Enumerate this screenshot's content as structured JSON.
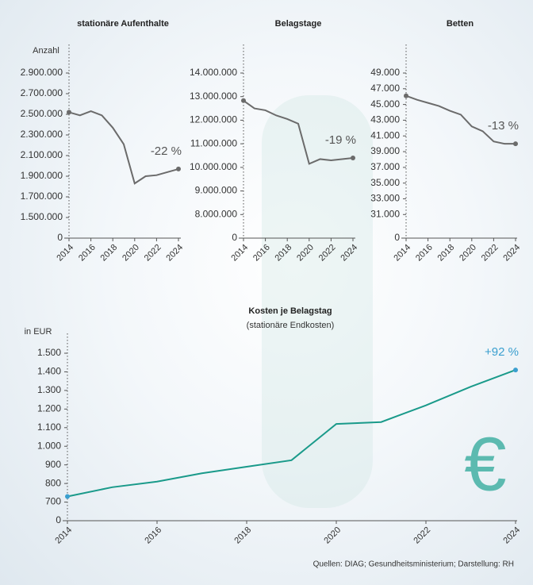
{
  "chart_data": [
    {
      "type": "line",
      "title": "stationäre Aufenthalte",
      "axis_label": "Anzahl",
      "annotation": "-22 %",
      "x": [
        2014,
        2015,
        2016,
        2017,
        2018,
        2019,
        2020,
        2021,
        2022,
        2023,
        2024
      ],
      "series": [
        {
          "name": "stationäre Aufenthalte",
          "color": "#6b6b6b",
          "values": [
            2520000,
            2490000,
            2530000,
            2490000,
            2370000,
            2210000,
            1830000,
            1900000,
            1910000,
            1940000,
            1970000
          ]
        }
      ],
      "xlim": [
        2014,
        2024
      ],
      "xticks": [
        2014,
        2016,
        2018,
        2020,
        2022,
        2024
      ],
      "ylim": [
        1300000,
        2900000
      ],
      "axis_break": true,
      "yticks": [
        0,
        {
          "value": 1500000,
          "label": "1.500.000"
        },
        {
          "value": 1700000,
          "label": "1.700.000"
        },
        {
          "value": 1900000,
          "label": "1.900.000"
        },
        {
          "value": 2100000,
          "label": "2.100.000"
        },
        {
          "value": 2300000,
          "label": "2.300.000"
        },
        {
          "value": 2500000,
          "label": "2.500.000"
        },
        {
          "value": 2700000,
          "label": "2.700.000"
        },
        {
          "value": 2900000,
          "label": "2.900.000"
        }
      ]
    },
    {
      "type": "line",
      "title": "Belagstage",
      "annotation": "-19 %",
      "x": [
        2014,
        2015,
        2016,
        2017,
        2018,
        2019,
        2020,
        2021,
        2022,
        2023,
        2024
      ],
      "series": [
        {
          "name": "Belagstage",
          "color": "#6b6b6b",
          "values": [
            12830000,
            12500000,
            12420000,
            12200000,
            12050000,
            11850000,
            10150000,
            10350000,
            10300000,
            10350000,
            10400000
          ]
        }
      ],
      "xlim": [
        2014,
        2024
      ],
      "xticks": [
        2014,
        2016,
        2018,
        2020,
        2022,
        2024
      ],
      "ylim": [
        7000000,
        14000000
      ],
      "axis_break": true,
      "yticks": [
        0,
        {
          "value": 8000000,
          "label": "8.000.000"
        },
        {
          "value": 9000000,
          "label": "9.000.000"
        },
        {
          "value": 10000000,
          "label": "10.000.000"
        },
        {
          "value": 11000000,
          "label": "11.000.000"
        },
        {
          "value": 12000000,
          "label": "12.000.000"
        },
        {
          "value": 13000000,
          "label": "13.000.000"
        },
        {
          "value": 14000000,
          "label": "14.000.000"
        }
      ]
    },
    {
      "type": "line",
      "title": "Betten",
      "annotation": "-13 %",
      "x": [
        2014,
        2015,
        2016,
        2017,
        2018,
        2019,
        2020,
        2021,
        2022,
        2023,
        2024
      ],
      "series": [
        {
          "name": "Betten",
          "color": "#6b6b6b",
          "values": [
            46100,
            45600,
            45200,
            44800,
            44200,
            43700,
            42200,
            41600,
            40300,
            40000,
            40000
          ]
        }
      ],
      "xlim": [
        2014,
        2024
      ],
      "xticks": [
        2014,
        2016,
        2018,
        2020,
        2022,
        2024
      ],
      "ylim": [
        28000,
        49000
      ],
      "axis_break": true,
      "yticks": [
        0,
        {
          "value": 31000,
          "label": "31.000"
        },
        {
          "value": 33000,
          "label": "33.000"
        },
        {
          "value": 35000,
          "label": "35.000"
        },
        {
          "value": 37000,
          "label": "37.000"
        },
        {
          "value": 39000,
          "label": "39.000"
        },
        {
          "value": 41000,
          "label": "41.000"
        },
        {
          "value": 43000,
          "label": "43.000"
        },
        {
          "value": 45000,
          "label": "45.000"
        },
        {
          "value": 47000,
          "label": "47.000"
        },
        {
          "value": 49000,
          "label": "49.000"
        }
      ]
    },
    {
      "type": "line",
      "title": "Kosten je Belagstag",
      "subtitle": "(stationäre Endkosten)",
      "axis_label": "in EUR",
      "annotation": "+92 %",
      "annotation_color": "#3a9fcf",
      "symbol": "€",
      "x": [
        2014,
        2015,
        2016,
        2017,
        2018,
        2019,
        2020,
        2021,
        2022,
        2023,
        2024
      ],
      "series": [
        {
          "name": "Kosten je Belagstag",
          "color": "#1a9a8a",
          "values": [
            730,
            780,
            810,
            855,
            890,
            925,
            1120,
            1130,
            1220,
            1320,
            1410
          ]
        }
      ],
      "xlim": [
        2014,
        2024
      ],
      "xticks": [
        2014,
        2016,
        2018,
        2020,
        2022,
        2024
      ],
      "ylim": [
        600,
        1500
      ],
      "axis_break": true,
      "yticks": [
        0,
        700,
        800,
        900,
        {
          "value": 1000,
          "label": "1.000"
        },
        {
          "value": 1100,
          "label": "1.100"
        },
        {
          "value": 1200,
          "label": "1.200"
        },
        {
          "value": 1300,
          "label": "1.300"
        },
        {
          "value": 1400,
          "label": "1.400"
        },
        {
          "value": 1500,
          "label": "1.500"
        }
      ]
    }
  ],
  "source": "Quellen: DIAG; Gesundheitsministerium; Darstellung: RH"
}
